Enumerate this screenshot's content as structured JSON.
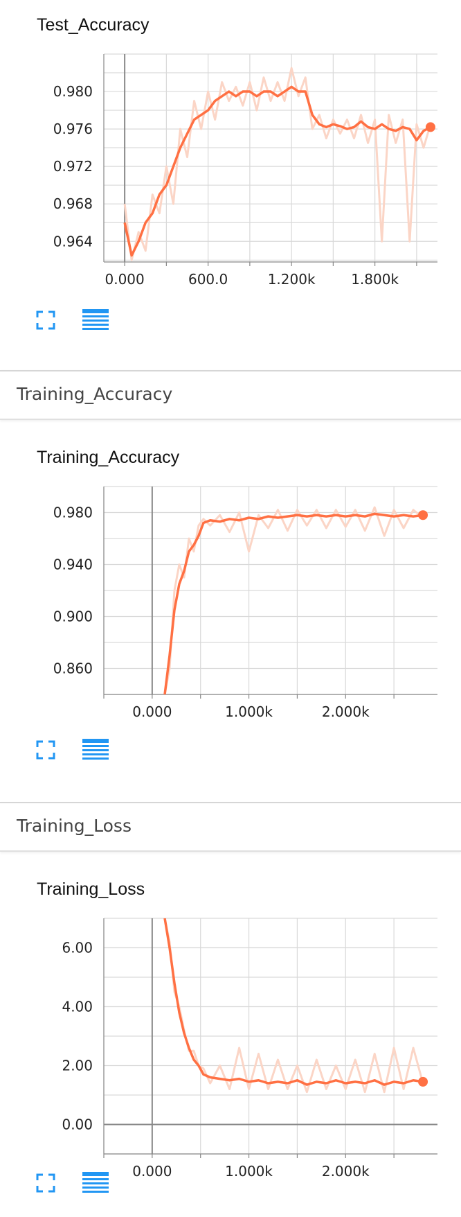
{
  "colors": {
    "line": "#ff7043",
    "raw": "#fbd5c6",
    "grid": "#d9d9d9",
    "axis": "#888888",
    "icon": "#2196f3"
  },
  "icons": [
    "fullscreen-icon",
    "list-icon"
  ],
  "sections": [
    {
      "header": ""
    },
    {
      "header": "Training_Accuracy"
    },
    {
      "header": "Training_Loss"
    }
  ],
  "chart_data": [
    {
      "type": "line",
      "title": "Test_Accuracy",
      "xlim": [
        -150,
        2250
      ],
      "ylim": [
        0.9618,
        0.984
      ],
      "ytick_values": [
        0.964,
        0.968,
        0.972,
        0.976,
        0.98
      ],
      "ytick_labels": [
        "0.964",
        "0.968",
        "0.972",
        "0.976",
        "0.980"
      ],
      "xtick_values": [
        0,
        600,
        1200,
        1800
      ],
      "xtick_labels": [
        "0.000",
        "600.0",
        "1.200k",
        "1.800k"
      ],
      "series": [
        {
          "x": [
            0,
            50,
            100,
            150,
            200,
            250,
            300,
            350,
            400,
            450,
            500,
            550,
            600,
            650,
            700,
            750,
            800,
            850,
            900,
            950,
            1000,
            1050,
            1100,
            1150,
            1200,
            1250,
            1300,
            1350,
            1400,
            1450,
            1500,
            1550,
            1600,
            1650,
            1700,
            1750,
            1800,
            1850,
            1900,
            1950,
            2000,
            2050,
            2100,
            2150,
            2200
          ],
          "smoothed": [
            0.966,
            0.9625,
            0.964,
            0.966,
            0.967,
            0.969,
            0.97,
            0.972,
            0.974,
            0.9755,
            0.977,
            0.9775,
            0.978,
            0.979,
            0.9795,
            0.98,
            0.9795,
            0.98,
            0.98,
            0.9795,
            0.98,
            0.98,
            0.9795,
            0.98,
            0.9805,
            0.98,
            0.98,
            0.9775,
            0.9765,
            0.9762,
            0.9765,
            0.9763,
            0.976,
            0.9762,
            0.9768,
            0.9762,
            0.976,
            0.9765,
            0.976,
            0.9758,
            0.9762,
            0.976,
            0.9748,
            0.9758,
            0.9762
          ],
          "raw": [
            0.968,
            0.962,
            0.965,
            0.963,
            0.969,
            0.967,
            0.972,
            0.968,
            0.976,
            0.973,
            0.979,
            0.976,
            0.98,
            0.977,
            0.981,
            0.979,
            0.9805,
            0.9785,
            0.981,
            0.978,
            0.9815,
            0.979,
            0.981,
            0.979,
            0.9825,
            0.9795,
            0.9815,
            0.976,
            0.9775,
            0.975,
            0.977,
            0.9755,
            0.977,
            0.975,
            0.9775,
            0.9745,
            0.977,
            0.964,
            0.9775,
            0.9745,
            0.977,
            0.964,
            0.9765,
            0.974,
            0.9765
          ]
        }
      ]
    },
    {
      "type": "line",
      "title": "Training_Accuracy",
      "xlim": [
        -500,
        2950
      ],
      "ylim": [
        0.84,
        1.0
      ],
      "ytick_values": [
        0.86,
        0.9,
        0.94,
        0.98
      ],
      "ytick_labels": [
        "0.860",
        "0.900",
        "0.940",
        "0.980"
      ],
      "xtick_values": [
        0,
        1000,
        2000
      ],
      "xtick_labels": [
        "0.000",
        "1.000k",
        "2.000k"
      ],
      "series": [
        {
          "x": [
            130,
            180,
            230,
            280,
            330,
            380,
            430,
            480,
            530,
            600,
            700,
            800,
            900,
            1000,
            1100,
            1200,
            1300,
            1400,
            1500,
            1600,
            1700,
            1800,
            1900,
            2000,
            2100,
            2200,
            2300,
            2400,
            2500,
            2600,
            2700,
            2800
          ],
          "smoothed": [
            0.84,
            0.87,
            0.905,
            0.925,
            0.935,
            0.95,
            0.955,
            0.962,
            0.972,
            0.974,
            0.973,
            0.975,
            0.974,
            0.976,
            0.975,
            0.977,
            0.976,
            0.977,
            0.978,
            0.977,
            0.978,
            0.977,
            0.978,
            0.977,
            0.978,
            0.977,
            0.979,
            0.978,
            0.977,
            0.978,
            0.977,
            0.978
          ],
          "raw": [
            0.84,
            0.86,
            0.92,
            0.94,
            0.93,
            0.96,
            0.95,
            0.97,
            0.975,
            0.97,
            0.978,
            0.965,
            0.98,
            0.95,
            0.978,
            0.968,
            0.982,
            0.966,
            0.982,
            0.97,
            0.982,
            0.968,
            0.982,
            0.969,
            0.982,
            0.966,
            0.984,
            0.962,
            0.982,
            0.968,
            0.982,
            0.976
          ]
        }
      ]
    },
    {
      "type": "line",
      "title": "Training_Loss",
      "xlim": [
        -500,
        2950
      ],
      "ylim": [
        -1.0,
        7.0
      ],
      "ytick_values": [
        0,
        2,
        4,
        6
      ],
      "ytick_labels": [
        "0.00",
        "2.00",
        "4.00",
        "6.00"
      ],
      "xtick_values": [
        0,
        1000,
        2000
      ],
      "xtick_labels": [
        "0.000",
        "1.000k",
        "2.000k"
      ],
      "series": [
        {
          "x": [
            130,
            180,
            230,
            280,
            330,
            380,
            430,
            480,
            530,
            600,
            700,
            800,
            900,
            1000,
            1100,
            1200,
            1300,
            1400,
            1500,
            1600,
            1700,
            1800,
            1900,
            2000,
            2100,
            2200,
            2300,
            2400,
            2500,
            2600,
            2700,
            2800
          ],
          "smoothed": [
            7.0,
            6.0,
            4.8,
            3.8,
            3.1,
            2.6,
            2.2,
            2.0,
            1.7,
            1.6,
            1.55,
            1.5,
            1.55,
            1.45,
            1.5,
            1.4,
            1.45,
            1.4,
            1.5,
            1.35,
            1.45,
            1.4,
            1.5,
            1.4,
            1.45,
            1.4,
            1.5,
            1.35,
            1.45,
            1.4,
            1.5,
            1.45
          ],
          "raw": [
            7.0,
            6.2,
            4.5,
            4.0,
            3.2,
            2.5,
            2.5,
            2.0,
            1.9,
            1.4,
            2.0,
            1.2,
            2.6,
            1.2,
            2.4,
            1.2,
            2.2,
            1.2,
            2.0,
            1.1,
            2.2,
            1.2,
            2.0,
            1.2,
            2.2,
            1.1,
            2.4,
            1.1,
            2.6,
            1.2,
            2.6,
            1.4
          ]
        }
      ]
    }
  ]
}
